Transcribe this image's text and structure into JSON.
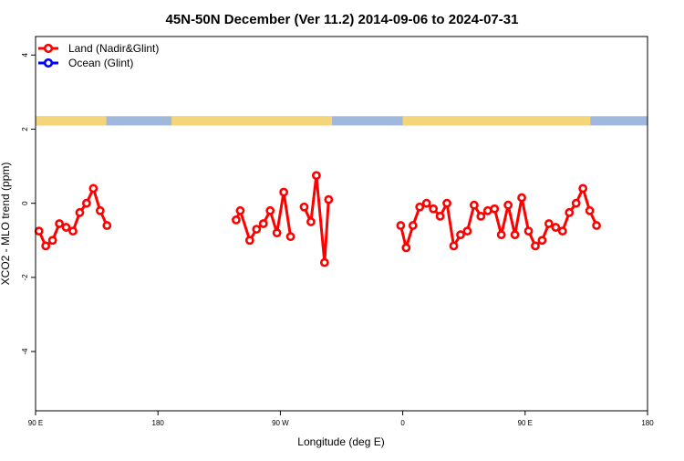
{
  "chart_data": {
    "type": "line",
    "title": "45N-50N December (Ver 11.2)   2014-09-06 to 2024-07-31",
    "xlabel": "Longitude (deg E)",
    "ylabel": "XCO2 - MLO trend (ppm)",
    "xlim": [
      90,
      540
    ],
    "ylim": [
      -5.6,
      4.5
    ],
    "x_ticks": [
      {
        "value": 90,
        "label": "90 E"
      },
      {
        "value": 180,
        "label": "180"
      },
      {
        "value": 270,
        "label": "90 W"
      },
      {
        "value": 360,
        "label": "0"
      },
      {
        "value": 450,
        "label": "90 E"
      },
      {
        "value": 540,
        "label": "180"
      }
    ],
    "y_ticks": [
      -4,
      -2,
      0,
      2,
      4
    ],
    "legend": {
      "placement": "top-left",
      "entries": [
        {
          "label": "Land (Nadir&Glint)",
          "color": "#ff0000"
        },
        {
          "label": "Ocean (Glint)",
          "color": "#0000ff"
        }
      ]
    },
    "landmask": {
      "y": 2.1,
      "land_color": "#f5d57a",
      "ocean_color": "#9fb8dc",
      "land_ranges": [
        [
          90,
          142
        ],
        [
          190,
          308
        ],
        [
          360,
          498
        ]
      ]
    },
    "series": [
      {
        "name": "Land (Nadir&Glint)",
        "color": "#ff0000",
        "segments": [
          [
            [
              92.5,
              -0.75
            ],
            [
              97.5,
              -1.15
            ],
            [
              102.5,
              -1.0
            ],
            [
              107.5,
              -0.55
            ],
            [
              112.5,
              -0.65
            ],
            [
              117.5,
              -0.75
            ],
            [
              122.5,
              -0.25
            ],
            [
              127.5,
              0.0
            ],
            [
              132.5,
              0.4
            ],
            [
              137.5,
              -0.2
            ],
            [
              142.5,
              -0.6
            ]
          ],
          [
            [
              237.5,
              -0.45
            ],
            [
              240.5,
              -0.2
            ],
            [
              247.5,
              -1.0
            ],
            [
              252.5,
              -0.7
            ],
            [
              257.5,
              -0.55
            ],
            [
              262.5,
              -0.2
            ],
            [
              267.5,
              -0.8
            ],
            [
              272.5,
              0.3
            ],
            [
              277.5,
              -0.9
            ]
          ],
          [
            [
              287.5,
              -0.1
            ],
            [
              292.5,
              -0.5
            ],
            [
              296.5,
              0.75
            ],
            [
              302.5,
              -1.6
            ],
            [
              305.5,
              0.1
            ]
          ],
          [
            [
              358.5,
              -0.6
            ],
            [
              362.5,
              -1.2
            ],
            [
              367.5,
              -0.6
            ],
            [
              372.5,
              -0.1
            ],
            [
              377.5,
              0.0
            ],
            [
              382.5,
              -0.15
            ],
            [
              387.5,
              -0.35
            ],
            [
              392.5,
              0.0
            ],
            [
              397.5,
              -1.15
            ],
            [
              402.5,
              -0.85
            ],
            [
              407.5,
              -0.75
            ],
            [
              412.5,
              -0.05
            ],
            [
              417.5,
              -0.35
            ],
            [
              422.5,
              -0.2
            ],
            [
              427.5,
              -0.15
            ],
            [
              432.5,
              -0.85
            ],
            [
              437.5,
              -0.05
            ],
            [
              442.5,
              -0.85
            ],
            [
              447.5,
              0.15
            ],
            [
              452.5,
              -0.75
            ],
            [
              457.5,
              -1.15
            ],
            [
              462.5,
              -1.0
            ],
            [
              467.5,
              -0.55
            ],
            [
              472.5,
              -0.65
            ],
            [
              477.5,
              -0.75
            ],
            [
              482.5,
              -0.25
            ],
            [
              487.5,
              0.0
            ],
            [
              492.5,
              0.4
            ],
            [
              497.5,
              -0.2
            ],
            [
              502.5,
              -0.6
            ]
          ]
        ]
      },
      {
        "name": "Ocean (Glint)",
        "color": "#0000ff",
        "segments": []
      }
    ]
  }
}
